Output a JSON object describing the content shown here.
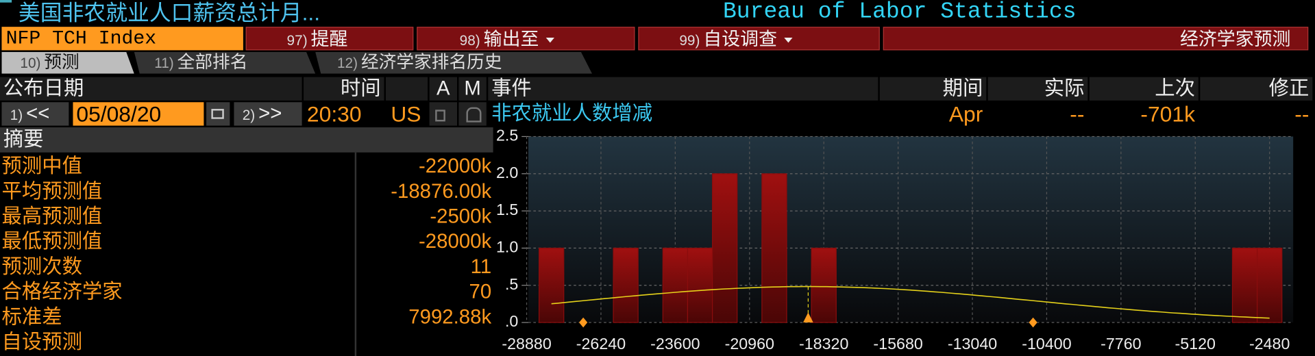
{
  "header": {
    "title": "美国非农就业人口薪资总计月...",
    "source": "Bureau of Labor Statistics"
  },
  "toolbar": {
    "ticker": "NFP TCH Index",
    "buttons": [
      {
        "number": "97)",
        "label": "提醒"
      },
      {
        "number": "98)",
        "label": "输出至"
      },
      {
        "number": "99)",
        "label": "自设调查"
      }
    ],
    "view": "经济学家预测"
  },
  "tabs": [
    {
      "number": "10)",
      "label": "预测"
    },
    {
      "number": "11)",
      "label": "全部排名"
    },
    {
      "number": "12)",
      "label": "经济学家排名历史"
    }
  ],
  "table": {
    "columns": [
      "公布日期",
      "时间",
      "A",
      "M",
      "事件",
      "期间",
      "实际",
      "上次",
      "修正"
    ],
    "prev": {
      "number": "1)",
      "label": "<<"
    },
    "next": {
      "number": "2)",
      "label": ">>"
    },
    "event": {
      "date": "05/08/20",
      "time": "20:30",
      "country": "US",
      "name": "非农就业人数增减",
      "period": "Apr",
      "actual": "--",
      "prior": "-701k",
      "revision": "--"
    }
  },
  "summary": {
    "title": "摘要",
    "rows": [
      {
        "label": "预测中值",
        "value": "-22000k"
      },
      {
        "label": "平均预测值",
        "value": "-18876.00k"
      },
      {
        "label": "最高预测值",
        "value": "-2500k"
      },
      {
        "label": "最低预测值",
        "value": "-28000k"
      },
      {
        "label": "预测次数",
        "value": "11"
      },
      {
        "label": "合格经济学家",
        "value": "70"
      },
      {
        "label": "标准差",
        "value": "7992.88k"
      },
      {
        "label": "自设预测"
      }
    ]
  },
  "chart_data": {
    "type": "histogram",
    "color": "#8a0d0d",
    "curve_color": "#e6d21a",
    "marker_color": "#ff9a1f",
    "bins": [
      -28440,
      -27560,
      -26680,
      -25800,
      -24920,
      -24040,
      -23160,
      -22280,
      -21400,
      -20520,
      -19640,
      -18760,
      -17880,
      -17000,
      -16120,
      -15240,
      -14360,
      -13480,
      -12600,
      -11720,
      -10840,
      -9960,
      -9080,
      -8200,
      -7320,
      -6440,
      -5560,
      -4680,
      -3800,
      -2920,
      -2040
    ],
    "counts": [
      1,
      0,
      0,
      1,
      0,
      1,
      1,
      2,
      0,
      2,
      0,
      1,
      0,
      0,
      0,
      0,
      0,
      0,
      0,
      0,
      0,
      0,
      0,
      0,
      0,
      0,
      0,
      0,
      1,
      1
    ],
    "mean": -18876,
    "std": 7992.88,
    "xlim": [
      -28820,
      -1640
    ],
    "xticks": [
      -28880,
      -26240,
      -23600,
      -20960,
      -18320,
      -15680,
      -13040,
      -10400,
      -7760,
      -5120,
      -2480
    ],
    "ylim": [
      0,
      2.5
    ],
    "yticks": [
      {
        "value": 0,
        "label": ".0"
      },
      {
        "value": 0.5,
        "label": ".5"
      },
      {
        "value": 1,
        "label": "1.0"
      },
      1.5,
      {
        "value": 2,
        "label": "2.0"
      },
      2.5
    ],
    "grid": true
  }
}
